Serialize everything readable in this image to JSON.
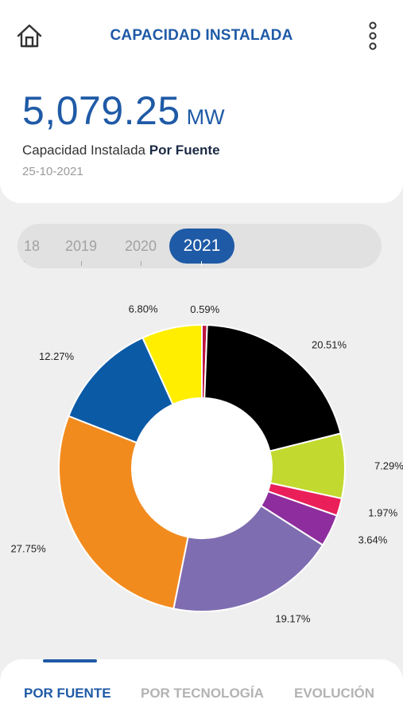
{
  "header": {
    "title": "CAPACIDAD INSTALADA"
  },
  "summary": {
    "value": "5,079.25",
    "unit": "MW",
    "subtitle_prefix": "Capacidad Instalada",
    "subtitle_emphasis": "Por Fuente",
    "date": "25-10-2021"
  },
  "years": {
    "items": [
      "18",
      "2019",
      "2020",
      "2021"
    ],
    "selected": "2021"
  },
  "chart_data": {
    "type": "pie",
    "labels": [
      "0.59%",
      "20.51%",
      "7.29%",
      "1.97%",
      "3.64%",
      "19.17%",
      "27.75%",
      "12.27%",
      "6.80%"
    ],
    "values": [
      0.59,
      20.51,
      7.29,
      1.97,
      3.64,
      19.17,
      27.75,
      12.27,
      6.8
    ],
    "colors": [
      "#c0163f",
      "#000000",
      "#c2d92f",
      "#ea1f5a",
      "#8e2d9e",
      "#7f6db1",
      "#f28b1e",
      "#0b5aa6",
      "#ffee00"
    ]
  },
  "tabs": [
    {
      "label": "POR FUENTE",
      "active": true
    },
    {
      "label": "POR TECNOLOGÍA",
      "active": false
    },
    {
      "label": "EVOLUCIÓN",
      "active": false
    }
  ]
}
